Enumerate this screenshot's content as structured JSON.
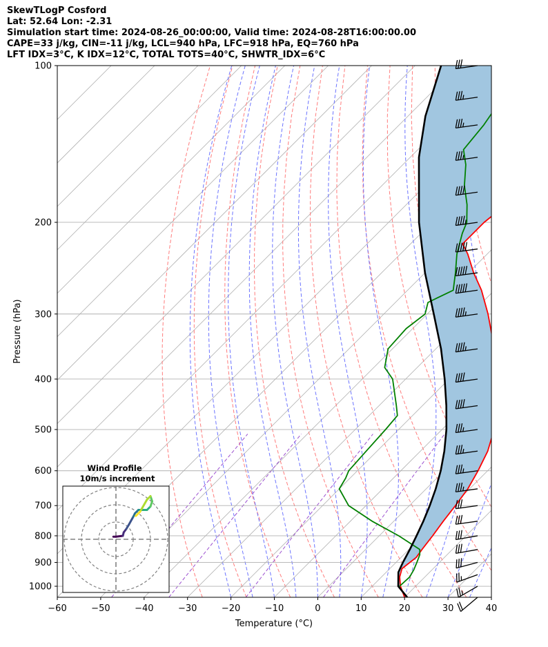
{
  "header": {
    "line1": "SkewTLogP Cosford",
    "line2": "Lat: 52.64   Lon: -2.31",
    "line3": "Simulation start time: 2024-08-26_00:00:00, Valid time: 2024-08-28T16:00:00.00",
    "line4": "CAPE=33 j/kg, CIN=-11 j/kg, LCL=940 hPa, LFC=918 hPa, EQ=760 hPa",
    "line5": "LFT IDX=3°C, K IDX=12°C, TOTAL TOTS=40°C, SHWTR_IDX=6°C"
  },
  "chart_data": {
    "type": "line",
    "xlabel": "Temperature (°C)",
    "ylabel": "Pressure (hPa)",
    "xlim": [
      -60,
      40
    ],
    "ylim": [
      1050,
      100
    ],
    "yscale": "log",
    "skew": "45 deg",
    "grid": true,
    "x_ticks": [
      "−60",
      "−50",
      "−40",
      "−30",
      "−20",
      "−10",
      "0",
      "10",
      "20",
      "30",
      "40"
    ],
    "y_ticks": [
      "100",
      "200",
      "300",
      "400",
      "500",
      "600",
      "700",
      "800",
      "900",
      "1000"
    ],
    "y_tick_values": [
      100,
      200,
      300,
      400,
      500,
      600,
      700,
      800,
      900,
      1000
    ],
    "colors": {
      "temperature": "#ff0000",
      "dewpoint": "#008000",
      "parcel": "#000000",
      "cape": "#a1c6e0",
      "dry_adiabat": "#ff7b7b",
      "moist_adiabat": "#6b73ff",
      "mixing_ratio": "#9b4fd0",
      "isotherm": "#b0b0b0"
    },
    "series": [
      {
        "role": "temperature",
        "color": "#ff0000",
        "points": [
          [
            1050,
            20
          ],
          [
            1000,
            16.5
          ],
          [
            960,
            14.2
          ],
          [
            925,
            12.8
          ],
          [
            880,
            13.5
          ],
          [
            850,
            13
          ],
          [
            800,
            12.3
          ],
          [
            750,
            11.4
          ],
          [
            700,
            10.6
          ],
          [
            650,
            9.6
          ],
          [
            600,
            7.8
          ],
          [
            550,
            5.5
          ],
          [
            500,
            2
          ],
          [
            450,
            -3.2
          ],
          [
            400,
            -9
          ],
          [
            350,
            -16.5
          ],
          [
            300,
            -26
          ],
          [
            270,
            -33
          ],
          [
            250,
            -38.8
          ],
          [
            230,
            -44.5
          ],
          [
            220,
            -48
          ],
          [
            210,
            -48
          ],
          [
            200,
            -48
          ],
          [
            185,
            -47
          ],
          [
            170,
            -47
          ],
          [
            150,
            -49
          ],
          [
            130,
            -51
          ],
          [
            115,
            -52.5
          ],
          [
            100,
            -55
          ]
        ]
      },
      {
        "role": "dewpoint",
        "color": "#008000",
        "points": [
          [
            1000,
            16.3
          ],
          [
            960,
            16.5
          ],
          [
            930,
            15.8
          ],
          [
            900,
            14.8
          ],
          [
            870,
            13.7
          ],
          [
            850,
            12.5
          ],
          [
            800,
            4.5
          ],
          [
            750,
            -5
          ],
          [
            700,
            -14
          ],
          [
            650,
            -20
          ],
          [
            620,
            -21
          ],
          [
            600,
            -22
          ],
          [
            550,
            -22.5
          ],
          [
            500,
            -23
          ],
          [
            470,
            -23.5
          ],
          [
            450,
            -26
          ],
          [
            400,
            -33
          ],
          [
            380,
            -37.5
          ],
          [
            350,
            -41
          ],
          [
            320,
            -41.5
          ],
          [
            300,
            -40.5
          ],
          [
            285,
            -42.5
          ],
          [
            270,
            -39.5
          ],
          [
            250,
            -43
          ],
          [
            230,
            -47
          ],
          [
            210,
            -50.5
          ],
          [
            200,
            -52
          ],
          [
            185,
            -56
          ],
          [
            170,
            -61
          ],
          [
            155,
            -65.5
          ],
          [
            145,
            -69.5
          ],
          [
            130,
            -70.5
          ],
          [
            115,
            -72.5
          ],
          [
            100,
            -75
          ]
        ]
      },
      {
        "role": "parcel",
        "color": "#000000",
        "points": [
          [
            1050,
            20.6
          ],
          [
            1000,
            16
          ],
          [
            940,
            12.8
          ],
          [
            900,
            11.6
          ],
          [
            850,
            10.2
          ],
          [
            800,
            8.6
          ],
          [
            750,
            6.8
          ],
          [
            700,
            4.7
          ],
          [
            650,
            2.2
          ],
          [
            600,
            -0.8
          ],
          [
            550,
            -4.5
          ],
          [
            500,
            -9
          ],
          [
            450,
            -14.5
          ],
          [
            400,
            -21
          ],
          [
            350,
            -28.8
          ],
          [
            300,
            -38.5
          ],
          [
            250,
            -50
          ],
          [
            200,
            -63
          ],
          [
            150,
            -78
          ],
          [
            125,
            -86
          ],
          [
            100,
            -94
          ]
        ]
      }
    ],
    "cape_between": [
      "parcel",
      "temperature"
    ],
    "wind_barbs": [
      {
        "p": 1050,
        "dir": 230,
        "speed_kt": 20
      },
      {
        "p": 1000,
        "dir": 240,
        "speed_kt": 25
      },
      {
        "p": 950,
        "dir": 250,
        "speed_kt": 25
      },
      {
        "p": 900,
        "dir": 255,
        "speed_kt": 30
      },
      {
        "p": 850,
        "dir": 260,
        "speed_kt": 30
      },
      {
        "p": 800,
        "dir": 260,
        "speed_kt": 30
      },
      {
        "p": 750,
        "dir": 262,
        "speed_kt": 30
      },
      {
        "p": 700,
        "dir": 262,
        "speed_kt": 30
      },
      {
        "p": 650,
        "dir": 262,
        "speed_kt": 35
      },
      {
        "p": 600,
        "dir": 262,
        "speed_kt": 35
      },
      {
        "p": 550,
        "dir": 262,
        "speed_kt": 35
      },
      {
        "p": 500,
        "dir": 262,
        "speed_kt": 35
      },
      {
        "p": 450,
        "dir": 262,
        "speed_kt": 40
      },
      {
        "p": 400,
        "dir": 262,
        "speed_kt": 40
      },
      {
        "p": 350,
        "dir": 262,
        "speed_kt": 45
      },
      {
        "p": 300,
        "dir": 262,
        "speed_kt": 45
      },
      {
        "p": 270,
        "dir": 262,
        "speed_kt": 50
      },
      {
        "p": 250,
        "dir": 262,
        "speed_kt": 50
      },
      {
        "p": 225,
        "dir": 262,
        "speed_kt": 50
      },
      {
        "p": 200,
        "dir": 262,
        "speed_kt": 45
      },
      {
        "p": 175,
        "dir": 262,
        "speed_kt": 40
      },
      {
        "p": 150,
        "dir": 262,
        "speed_kt": 35
      },
      {
        "p": 130,
        "dir": 262,
        "speed_kt": 35
      },
      {
        "p": 115,
        "dir": 262,
        "speed_kt": 35
      },
      {
        "p": 100,
        "dir": 262,
        "speed_kt": 30
      }
    ],
    "hodograph": {
      "title": "Wind Profile",
      "subtitle": "10m/s increment",
      "rings_ms": [
        10,
        20,
        30
      ],
      "uv_ms": [
        [
          -1.5,
          1.5
        ],
        [
          0,
          1.5
        ],
        [
          4,
          2
        ],
        [
          4.5,
          4
        ],
        [
          6,
          6
        ],
        [
          7.5,
          8.5
        ],
        [
          10,
          13
        ],
        [
          11,
          15
        ],
        [
          13,
          17
        ],
        [
          16,
          17
        ],
        [
          18,
          17
        ],
        [
          20,
          19
        ],
        [
          21,
          22
        ],
        [
          20,
          25
        ],
        [
          18,
          23
        ],
        [
          14,
          16
        ],
        [
          11.5,
          13.5
        ]
      ]
    }
  }
}
